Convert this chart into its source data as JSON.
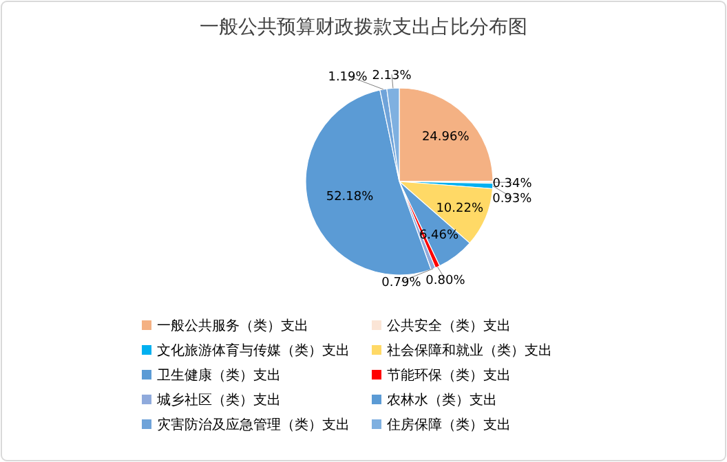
{
  "chart_data": {
    "type": "pie",
    "title": "一般公共预算财政拨款支出占比分布图",
    "categories": [
      "一般公共服务（类）支出",
      "公共安全（类）支出",
      "文化旅游体育与传媒（类）支出",
      "社会保障和就业（类）支出",
      "卫生健康（类）支出",
      "节能环保（类）支出",
      "城乡社区（类）支出",
      "农林水（类）支出",
      "灾害防治及应急管理（类）支出",
      "住房保障（类）支出"
    ],
    "values": [
      24.96,
      0.34,
      0.93,
      10.22,
      6.46,
      0.8,
      0.79,
      52.18,
      1.19,
      2.13
    ],
    "value_labels": [
      "24.96%",
      "0.34%",
      "0.93%",
      "10.22%",
      "6.46%",
      "0.80%",
      "0.79%",
      "52.18%",
      "1.19%",
      "2.13%"
    ],
    "colors": [
      "#f4b183",
      "#fbe5d6",
      "#00b0f0",
      "#ffd966",
      "#5b9bd5",
      "#ff0000",
      "#8faadc",
      "#5b9bd5",
      "#6fa3d9",
      "#7fb0e0"
    ],
    "legend": "bottom"
  }
}
